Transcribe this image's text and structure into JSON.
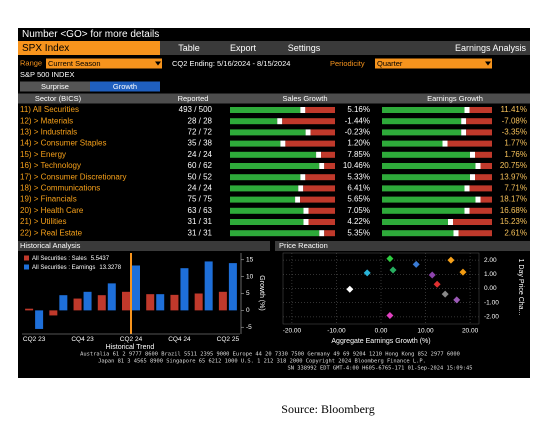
{
  "header": {
    "title": "Number <GO> for more details"
  },
  "toolbar": {
    "security": "SPX Index",
    "tabs": [
      "Table",
      "Export",
      "Settings"
    ],
    "view": "Earnings Analysis"
  },
  "filters": {
    "range_label": "Range",
    "range": "Current Season",
    "period": "CQ2 Ending: 5/16/2024 - 8/15/2024",
    "periodicity_label": "Periodicity",
    "periodicity": "Quarter"
  },
  "index_name": "S&P 500 INDEX",
  "toggle": {
    "options": [
      "Surprise",
      "Growth"
    ],
    "selected": 1
  },
  "table": {
    "columns": [
      "Sector (BICS)",
      "Reported",
      "Sales Growth",
      "Earnings Growth"
    ],
    "rows": [
      {
        "label": "11) All Securities",
        "reported": "493 / 500",
        "sales_bar": 67,
        "sales_growth": "5.16%",
        "earnings_bar": 75,
        "earnings_growth": "11.41%"
      },
      {
        "label": "12) > Materials",
        "reported": "28 / 28",
        "sales_bar": 45,
        "sales_growth": "-1.44%",
        "earnings_bar": 72,
        "earnings_growth": "-7.08%"
      },
      {
        "label": "13) > Industrials",
        "reported": "72 / 72",
        "sales_bar": 72,
        "sales_growth": "-0.23%",
        "earnings_bar": 72,
        "earnings_growth": "-3.35%"
      },
      {
        "label": "14) > Consumer Staples",
        "reported": "35 / 38",
        "sales_bar": 48,
        "sales_growth": "1.20%",
        "earnings_bar": 55,
        "earnings_growth": "1.77%"
      },
      {
        "label": "15) > Energy",
        "reported": "24 / 24",
        "sales_bar": 82,
        "sales_growth": "7.85%",
        "earnings_bar": 80,
        "earnings_growth": "1.76%"
      },
      {
        "label": "16) > Technology",
        "reported": "60 / 62",
        "sales_bar": 85,
        "sales_growth": "10.46%",
        "earnings_bar": 85,
        "earnings_growth": "20.75%"
      },
      {
        "label": "17) > Consumer Discretionary",
        "reported": "50 / 52",
        "sales_bar": 67,
        "sales_growth": "5.33%",
        "earnings_bar": 80,
        "earnings_growth": "13.97%"
      },
      {
        "label": "18) > Communications",
        "reported": "24 / 24",
        "sales_bar": 65,
        "sales_growth": "6.41%",
        "earnings_bar": 75,
        "earnings_growth": "7.71%"
      },
      {
        "label": "19) > Financials",
        "reported": "75 / 75",
        "sales_bar": 62,
        "sales_growth": "5.65%",
        "earnings_bar": 85,
        "earnings_growth": "18.17%"
      },
      {
        "label": "20) > Health Care",
        "reported": "63 / 63",
        "sales_bar": 70,
        "sales_growth": "7.05%",
        "earnings_bar": 75,
        "earnings_growth": "16.68%"
      },
      {
        "label": "21) > Utilities",
        "reported": "31 / 31",
        "sales_bar": 70,
        "sales_growth": "4.22%",
        "earnings_bar": 60,
        "earnings_growth": "15.23%"
      },
      {
        "label": "22) > Real Estate",
        "reported": "31 / 31",
        "sales_bar": 85,
        "sales_growth": "5.35%",
        "earnings_bar": 65,
        "earnings_growth": "2.61%"
      }
    ]
  },
  "historical": {
    "type": "bar",
    "title": "Historical Analysis",
    "categories": [
      "CQ2 23",
      null,
      "CQ4 23",
      null,
      "CQ2 24",
      null,
      "CQ4 24",
      null,
      "CQ2 25"
    ],
    "series": [
      {
        "name": "All Securities : Sales",
        "legend_value": 5.5437,
        "color": "#c0392b",
        "values": [
          0.5,
          -1.5,
          3.5,
          4.5,
          5.5,
          4.8,
          4.6,
          5.0,
          5.5
        ]
      },
      {
        "name": "All Securities : Earnings",
        "legend_value": 13.3278,
        "color": "#1e6fd9",
        "values": [
          -5.5,
          4.5,
          5.5,
          8,
          13.3,
          4.8,
          12.5,
          14.5,
          14
        ]
      }
    ],
    "ylim": [
      -7,
      17
    ],
    "yticks": [
      15,
      10,
      5,
      0,
      -5
    ],
    "ylabel": "Growth (%)",
    "xlabel": "Historical Trend",
    "current_index": 4,
    "current_color": "#f7941d"
  },
  "price_reaction": {
    "type": "scatter",
    "title": "Price Reaction",
    "xlabel": "Aggregate Earnings Growth (%)",
    "ylabel": "1 Day Price Cha...",
    "x": [
      2,
      15.7,
      7.9,
      2.7,
      -3.1,
      18.4,
      11.5,
      12.6,
      -7,
      14.4,
      17,
      2
    ],
    "y": [
      2.1,
      2.0,
      1.7,
      1.3,
      1.1,
      1.15,
      0.95,
      0.3,
      -0.05,
      -0.4,
      -0.8,
      -1.9
    ],
    "colors": [
      "#2ecc40",
      "#f7a11a",
      "#3a7bd5",
      "#27ae60",
      "#28b4d8",
      "#f39c12",
      "#8e44ad",
      "#e03030",
      "#ffffff",
      "#888888",
      "#9b59b6",
      "#e040c0"
    ],
    "xlim": [
      -22,
      22
    ],
    "xticks": [
      {
        "value": -20,
        "label": "-20.00"
      },
      {
        "value": -10,
        "label": "-10.00"
      },
      {
        "value": 0,
        "label": "0.00"
      },
      {
        "value": 10,
        "label": "10.00"
      },
      {
        "value": 20,
        "label": "20.00"
      }
    ],
    "ylim": [
      -2.5,
      2.5
    ],
    "yticks": [
      {
        "value": 2,
        "label": "2.00"
      },
      {
        "value": 1,
        "label": "1.00"
      },
      {
        "value": 0,
        "label": "0.00"
      },
      {
        "value": -1,
        "label": "-1.00"
      },
      {
        "value": -2,
        "label": "-2.00"
      }
    ]
  },
  "footer": {
    "lines": [
      "Australia 61 2 9777 8600 Brazil 5511 2395 9000 Europe 44 20 7330 7500 Germany 49 69 9204 1210 Hong Kong 852 2977 6000",
      "Japan 81 3 4565 8900 Singapore 65 6212 1000 U.S. 1 212 318 2000 Copyright 2024 Bloomberg Finance L.P.",
      "SN 338992 EDT GMT-4:00 H605-6765-171 01-Sep-2024 15:09:45"
    ]
  },
  "caption": "Source: Bloomberg"
}
